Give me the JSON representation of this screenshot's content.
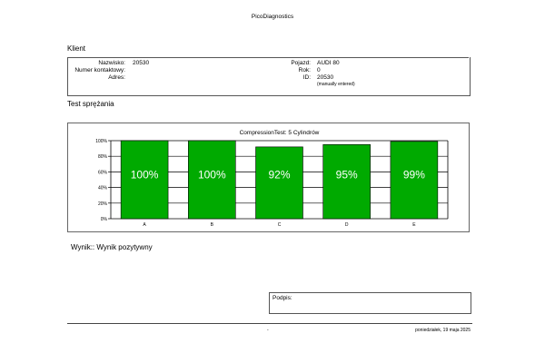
{
  "header": {
    "app_title": "PicoDiagnostics"
  },
  "client_section": {
    "heading": "Klient",
    "left": [
      {
        "label": "Nazwisko:",
        "value": "20530"
      },
      {
        "label": "Numer kontaktowy:",
        "value": ""
      },
      {
        "label": "Adres:",
        "value": ""
      }
    ],
    "right": [
      {
        "label": "Pojazd:",
        "value": "AUDI 80"
      },
      {
        "label": "Rok:",
        "value": "0"
      },
      {
        "label": "ID:",
        "value": "20530"
      }
    ],
    "id_note": "(manually entered)"
  },
  "test_section": {
    "heading": "Test sprężania"
  },
  "chart_data": {
    "type": "bar",
    "title": "CompressionTest: 5 Cylindrów",
    "categories": [
      "A",
      "B",
      "C",
      "D",
      "E"
    ],
    "values": [
      100,
      100,
      92,
      95,
      99
    ],
    "value_labels": [
      "100%",
      "100%",
      "92%",
      "95%",
      "99%"
    ],
    "y_ticks": [
      "0%",
      "20%",
      "40%",
      "60%",
      "80%",
      "100%"
    ],
    "ylim": [
      0,
      100
    ],
    "bar_color": "#00aa00",
    "grid": true,
    "legend": "none"
  },
  "result": {
    "text": "Wynik:: Wynik pozytywny"
  },
  "signature": {
    "label": "Podpis:"
  },
  "footer": {
    "center_mark": "-",
    "date": "poniedziałek, 19 maja 2025"
  }
}
